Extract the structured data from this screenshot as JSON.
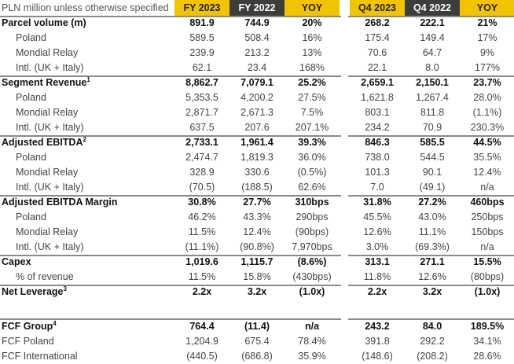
{
  "table": {
    "header": {
      "note": "PLN million unless otherwise specified",
      "columns": [
        "FY 2023",
        "FY 2022",
        "YOY",
        "Q4 2023",
        "Q4 2022",
        "YOY"
      ]
    },
    "groups": [
      {
        "label": "Parcel volume (m)",
        "values": [
          "891.9",
          "744.9",
          "20%",
          "268.2",
          "222.1",
          "21%"
        ],
        "rows": [
          {
            "label": "Poland",
            "values": [
              "589.5",
              "508.4",
              "16%",
              "175.4",
              "149.4",
              "17%"
            ]
          },
          {
            "label": "Mondial Relay",
            "values": [
              "239.9",
              "213.2",
              "13%",
              "70.6",
              "64.7",
              "9%"
            ]
          },
          {
            "label": "Intl. (UK + Italy)",
            "values": [
              "62.1",
              "23.4",
              "168%",
              "22.1",
              "8.0",
              "177%"
            ]
          }
        ]
      },
      {
        "label": "Segment Revenue",
        "note": "1",
        "values": [
          "8,862.7",
          "7,079.1",
          "25.2%",
          "2,659.1",
          "2,150.1",
          "23.7%"
        ],
        "rows": [
          {
            "label": "Poland",
            "values": [
              "5,353.5",
              "4,200.2",
              "27.5%",
              "1,621.8",
              "1,267.4",
              "28.0%"
            ]
          },
          {
            "label": "Mondial Relay",
            "values": [
              "2,871.7",
              "2,671.3",
              "7.5%",
              "803.1",
              "811.8",
              "(1.1%)"
            ]
          },
          {
            "label": "Intl. (UK + Italy)",
            "values": [
              "637.5",
              "207.6",
              "207.1%",
              "234.2",
              "70.9",
              "230.3%"
            ]
          }
        ]
      },
      {
        "label": "Adjusted EBITDA",
        "note": "2",
        "values": [
          "2,733.1",
          "1,961.4",
          "39.3%",
          "846.3",
          "585.5",
          "44.5%"
        ],
        "rows": [
          {
            "label": "Poland",
            "values": [
              "2,474.7",
              "1,819.3",
              "36.0%",
              "738.0",
              "544.5",
              "35.5%"
            ]
          },
          {
            "label": "Mondial Relay",
            "values": [
              "328.9",
              "330.6",
              "(0.5%)",
              "101.3",
              "90.1",
              "12.4%"
            ]
          },
          {
            "label": "Intl. (UK + Italy)",
            "values": [
              "(70.5)",
              "(188.5)",
              "62.6%",
              "7.0",
              "(49.1)",
              "n/a"
            ]
          }
        ]
      },
      {
        "label": "Adjusted EBITDA Margin",
        "values": [
          "30.8%",
          "27.7%",
          "310bps",
          "31.8%",
          "27.2%",
          "460bps"
        ],
        "rows": [
          {
            "label": "Poland",
            "values": [
              "46.2%",
              "43.3%",
              "290bps",
              "45.5%",
              "43.0%",
              "250bps"
            ]
          },
          {
            "label": "Mondial Relay",
            "values": [
              "11.5%",
              "12.4%",
              "(90bps)",
              "12.6%",
              "11.1%",
              "150bps"
            ]
          },
          {
            "label": "Intl. (UK + Italy)",
            "values": [
              "(11.1%)",
              "(90.8%)",
              "7,970bps",
              "3.0%",
              "(69.3%)",
              "n/a"
            ]
          }
        ]
      },
      {
        "label": "Capex",
        "values": [
          "1,019.6",
          "1,115.7",
          "(8.6%)",
          "313.1",
          "271.1",
          "15.5%"
        ],
        "rows": [
          {
            "label": "% of revenue",
            "values": [
              "11.5%",
              "15.8%",
              "(430bps)",
              "11.8%",
              "12.6%",
              "(80bps)"
            ]
          }
        ]
      },
      {
        "label": "Net Leverage",
        "note": "3",
        "values": [
          "2.2x",
          "3.2x",
          "(1.0x)",
          "2.2x",
          "3.2x",
          "(1.0x)"
        ],
        "rows": []
      }
    ],
    "fcf": {
      "label": "FCF Group",
      "note": "4",
      "values": [
        "764.4",
        "(11.4)",
        "n/a",
        "243.2",
        "84.0",
        "189.5%"
      ],
      "rows": [
        {
          "label": "FCF Poland",
          "values": [
            "1,204.9",
            "675.4",
            "78.4%",
            "391.8",
            "292.2",
            "34.1%"
          ]
        },
        {
          "label": "FCF International",
          "values": [
            "(440.5)",
            "(686.8)",
            "35.9%",
            "(148.6)",
            "(208.2)",
            "28.6%"
          ]
        }
      ]
    }
  }
}
